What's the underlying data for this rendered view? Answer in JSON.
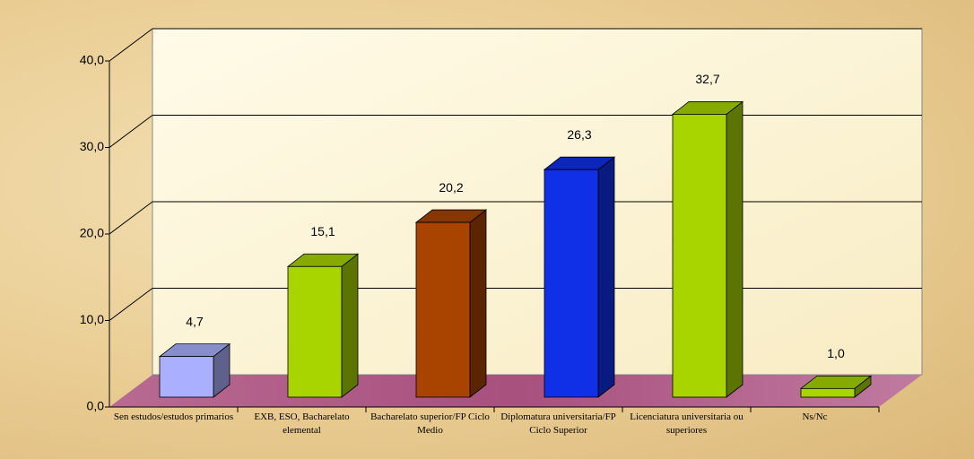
{
  "chart_data": {
    "type": "bar3d",
    "categories": [
      "Sen estudos/estudos primarios",
      "EXB, ESO, Bacharelato elemental",
      "Bacharelato superior/FP Ciclo Medio",
      "Diplomatura universitaria/FP Ciclo Superior",
      "Licenciatura universitaria ou superiores",
      "Ns/Nc"
    ],
    "values": [
      4.7,
      15.1,
      20.2,
      26.3,
      32.7,
      1.0
    ],
    "value_labels": [
      "4,7",
      "15,1",
      "20,2",
      "26,3",
      "32,7",
      "1,0"
    ],
    "colors": [
      "#aab0ff",
      "#a8d400",
      "#a84400",
      "#1030e8",
      "#a8d400",
      "#a8d400"
    ],
    "ylim": [
      0,
      40
    ],
    "yticks": [
      {
        "value": 0,
        "label": "0,0"
      },
      {
        "value": 10,
        "label": "10,0"
      },
      {
        "value": 20,
        "label": "20,0"
      },
      {
        "value": 30,
        "label": "30,0"
      },
      {
        "value": 40,
        "label": "40,0"
      }
    ],
    "grid": true
  }
}
